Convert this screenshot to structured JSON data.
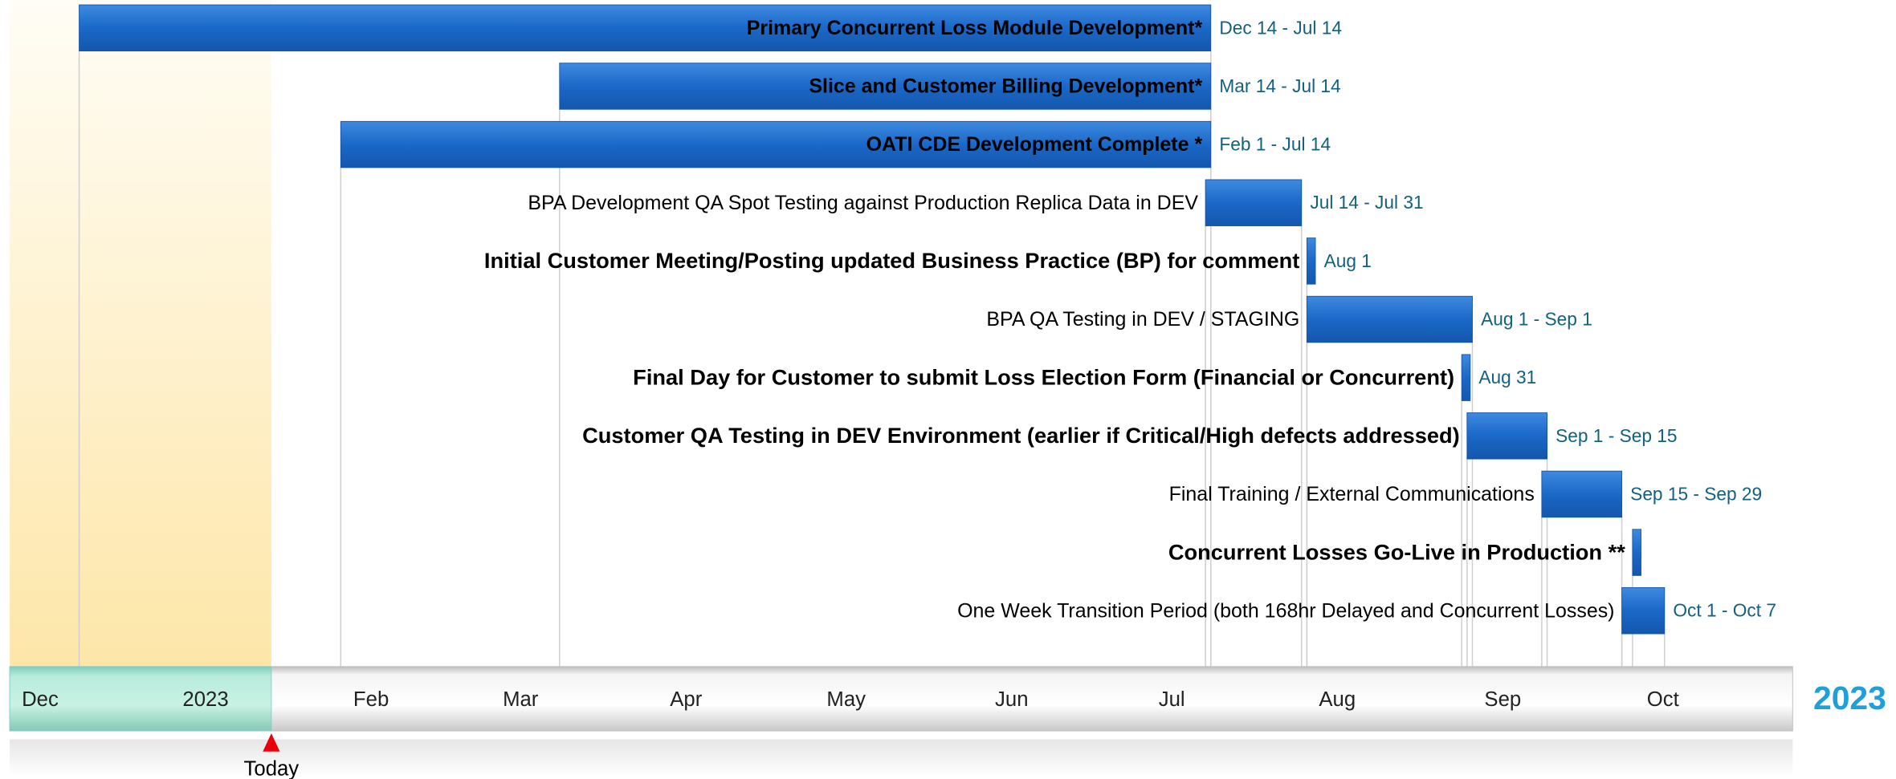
{
  "chart_data": {
    "type": "gantt",
    "xlim": [
      0,
      334
    ],
    "xticks": [
      {
        "value": 0,
        "label": "Dec"
      },
      {
        "value": 31,
        "label": "2023"
      },
      {
        "value": 62,
        "label": "Feb"
      },
      {
        "value": 90,
        "label": "Mar"
      },
      {
        "value": 121,
        "label": "Apr"
      },
      {
        "value": 151,
        "label": "May"
      },
      {
        "value": 182,
        "label": "Jun"
      },
      {
        "value": 212,
        "label": "Jul"
      },
      {
        "value": 243,
        "label": "Aug"
      },
      {
        "value": 274,
        "label": "Sep"
      },
      {
        "value": 304,
        "label": "Oct"
      }
    ],
    "year_label": "2023",
    "today": {
      "label": "Today",
      "value": 49
    },
    "color": "#1a68c8",
    "tasks": [
      {
        "name": "Primary Concurrent Loss Module Development*",
        "dates": "Dec 14 - Jul 14",
        "start": 13,
        "end": 225,
        "bold": true,
        "label_inside": true
      },
      {
        "name": "Slice and Customer Billing Development*",
        "dates": "Mar 14 - Jul 14",
        "start": 103,
        "end": 225,
        "bold": true,
        "label_inside": true
      },
      {
        "name": "OATI CDE Development Complete *",
        "dates": "Feb 1 - Jul 14",
        "start": 62,
        "end": 225,
        "bold": true,
        "label_inside": true
      },
      {
        "name": "BPA Development QA Spot Testing against Production Replica Data in DEV",
        "dates": "Jul 14 - Jul 31",
        "start": 224,
        "end": 242,
        "bold": false,
        "label_inside": false
      },
      {
        "name": "Initial Customer Meeting/Posting updated Business Practice (BP) for comment",
        "dates": "Aug 1",
        "start": 243,
        "end": 243,
        "bold": true,
        "label_inside": false
      },
      {
        "name": "BPA QA Testing in DEV / STAGING",
        "dates": "Aug 1 - Sep 1",
        "start": 243,
        "end": 274,
        "bold": false,
        "label_inside": false
      },
      {
        "name": "Final Day for Customer to submit Loss Election Form (Financial or Concurrent)",
        "dates": "Aug 31",
        "start": 272,
        "end": 272,
        "bold": true,
        "label_inside": false
      },
      {
        "name": "Customer QA Testing in DEV Environment (earlier if Critical/High defects addressed)",
        "dates": "Sep 1 - Sep 15",
        "start": 273,
        "end": 288,
        "bold": true,
        "label_inside": false
      },
      {
        "name": "Final Training / External Communications",
        "dates": "Sep 15 - Sep 29",
        "start": 287,
        "end": 302,
        "bold": false,
        "label_inside": false
      },
      {
        "name": "Concurrent Losses Go-Live in Production **",
        "start": 304,
        "end": 304,
        "bold": true,
        "label_inside": false
      },
      {
        "name": "One Week Transition Period (both 168hr Delayed and Concurrent Losses)",
        "dates": "Oct 1 - Oct 7",
        "start": 302,
        "end": 310,
        "bold": false,
        "label_inside": false
      }
    ]
  }
}
